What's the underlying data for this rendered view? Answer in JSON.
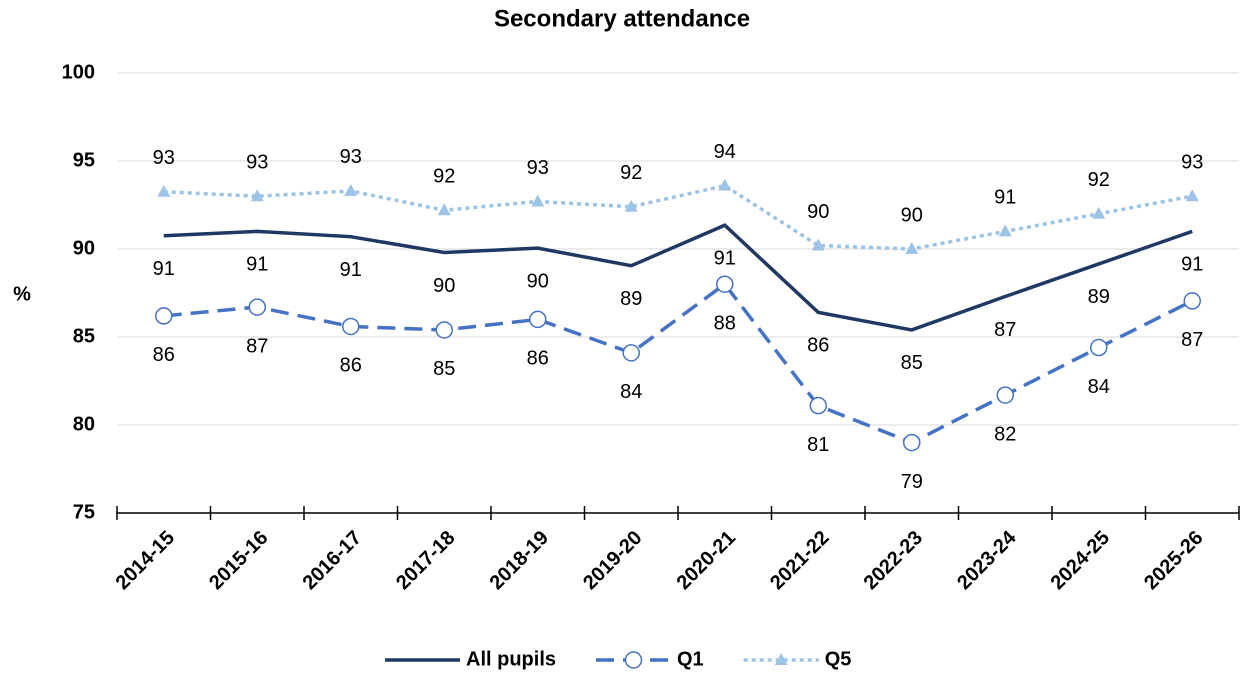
{
  "chart_data": {
    "type": "line",
    "title": "Secondary attendance",
    "y_label": "%",
    "categories": [
      "2014-15",
      "2015-16",
      "2016-17",
      "2017-18",
      "2018-19",
      "2019-20",
      "2020-21",
      "2021-22",
      "2022-23",
      "2023-24",
      "2024-25",
      "2025-26"
    ],
    "ylim": [
      75,
      100
    ],
    "yticks": [
      75,
      80,
      85,
      90,
      95,
      100
    ],
    "grid": true,
    "legend": "bottom",
    "series": [
      {
        "name": "All pupils",
        "color": "#1f3864",
        "line_style": "solid",
        "marker": "none",
        "label_position": "below",
        "values": [
          90.75,
          91.0,
          90.7,
          89.8,
          90.05,
          89.05,
          91.35,
          86.4,
          85.4,
          87.3,
          89.15,
          91.0
        ],
        "value_labels": [
          "91",
          "91",
          "91",
          "90",
          "90",
          "89",
          "91",
          "86",
          "85",
          "87",
          "89",
          "91"
        ]
      },
      {
        "name": "Q1",
        "color": "#4472c4",
        "line_style": "dashed",
        "marker": "circle",
        "label_position": "below",
        "values": [
          86.2,
          86.7,
          85.6,
          85.4,
          86.0,
          84.1,
          88.0,
          81.1,
          79.0,
          81.7,
          84.4,
          87.05
        ],
        "value_labels": [
          "86",
          "87",
          "86",
          "85",
          "86",
          "84",
          "88",
          "81",
          "79",
          "82",
          "84",
          "87"
        ]
      },
      {
        "name": "Q5",
        "color": "#9dc3e6",
        "line_style": "dotted",
        "marker": "triangle",
        "label_position": "above",
        "values": [
          93.25,
          93.0,
          93.3,
          92.2,
          92.7,
          92.4,
          93.6,
          90.2,
          90.0,
          91.0,
          92.0,
          93.0
        ],
        "value_labels": [
          "93",
          "93",
          "93",
          "92",
          "93",
          "92",
          "94",
          "90",
          "90",
          "91",
          "92",
          "93"
        ]
      }
    ]
  }
}
